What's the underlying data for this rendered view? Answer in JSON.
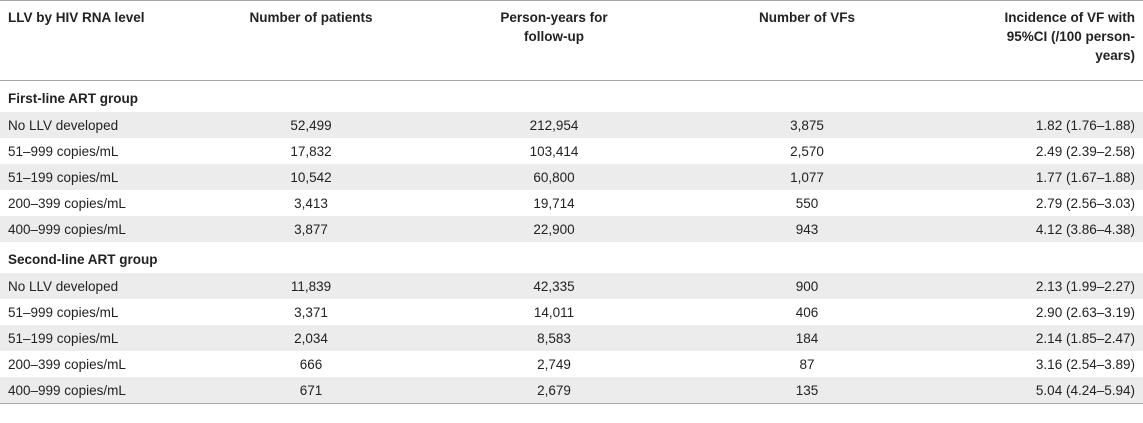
{
  "table": {
    "headers": [
      "LLV by HIV RNA level",
      "Number of patients",
      "Person-years for follow-up",
      "Number of VFs",
      "Incidence of VF with 95%CI (/100 person-years)"
    ],
    "groups": [
      {
        "label": "First-line ART group",
        "rows": [
          [
            "No LLV developed",
            "52,499",
            "212,954",
            "3,875",
            "1.82 (1.76–1.88)"
          ],
          [
            "51–999 copies/mL",
            "17,832",
            "103,414",
            "2,570",
            "2.49 (2.39–2.58)"
          ],
          [
            "51–199 copies/mL",
            "10,542",
            "60,800",
            "1,077",
            "1.77 (1.67–1.88)"
          ],
          [
            "200–399 copies/mL",
            "3,413",
            "19,714",
            "550",
            "2.79 (2.56–3.03)"
          ],
          [
            "400–999 copies/mL",
            "3,877",
            "22,900",
            "943",
            "4.12 (3.86–4.38)"
          ]
        ]
      },
      {
        "label": "Second-line ART group",
        "rows": [
          [
            "No LLV developed",
            "11,839",
            "42,335",
            "900",
            "2.13 (1.99–2.27)"
          ],
          [
            "51–999 copies/mL",
            "3,371",
            "14,011",
            "406",
            "2.90 (2.63–3.19)"
          ],
          [
            "51–199 copies/mL",
            "2,034",
            "8,583",
            "184",
            "2.14 (1.85–2.47)"
          ],
          [
            "200–399 copies/mL",
            "666",
            "2,749",
            "87",
            "3.16 (2.54–3.89)"
          ],
          [
            "400–999 copies/mL",
            "671",
            "2,679",
            "135",
            "5.04 (4.24–5.94)"
          ]
        ]
      }
    ]
  }
}
